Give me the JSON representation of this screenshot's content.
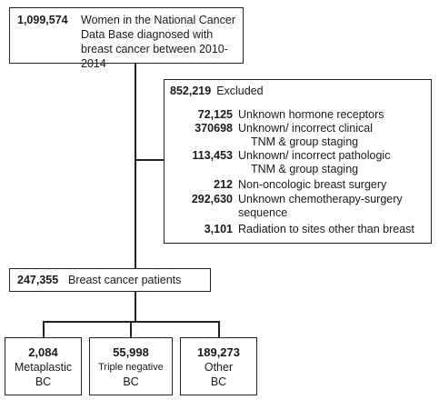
{
  "top": {
    "count": "1,099,574",
    "description": "Women in the National Cancer Data Base diagnosed with breast cancer between 2010-2014"
  },
  "excluded": {
    "count": "852,219",
    "label": "Excluded",
    "items": [
      {
        "count": "72,125",
        "label_line1": "Unknown hormone receptors",
        "label_line2": ""
      },
      {
        "count": "370698",
        "label_line1": "Unknown/ incorrect clinical",
        "label_line2": "TNM & group staging"
      },
      {
        "count": "113,453",
        "label_line1": "Unknown/ incorrect pathologic",
        "label_line2": "TNM & group staging"
      },
      {
        "count": "212",
        "label_line1": "Non-oncologic breast surgery",
        "label_line2": ""
      },
      {
        "count": "292,630",
        "label_line1": "Unknown chemotherapy-surgery",
        "label_line2": "sequence"
      },
      {
        "count": "3,101",
        "label_line1": "Radiation to sites other than breast",
        "label_line2": ""
      }
    ]
  },
  "middle": {
    "count": "247,355",
    "description": "Breast cancer patients"
  },
  "groups": [
    {
      "count": "2,084",
      "label": "Metaplastic",
      "sub": "BC"
    },
    {
      "count": "55,998",
      "label": "Triple negative",
      "sub": "BC"
    },
    {
      "count": "189,273",
      "label": "Other",
      "sub": "BC"
    }
  ]
}
